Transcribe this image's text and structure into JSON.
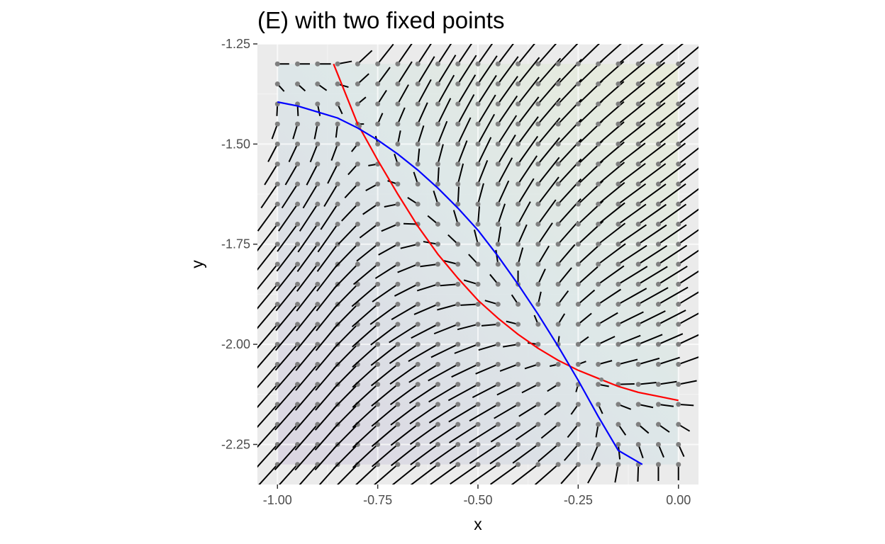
{
  "chart_data": {
    "type": "scatter",
    "title": "(E) with two fixed points",
    "xlabel": "x",
    "ylabel": "y",
    "xlim": [
      -1.05,
      0.05
    ],
    "ylim": [
      -2.35,
      -1.25
    ],
    "x_ticks": [
      -1.0,
      -0.75,
      -0.5,
      -0.25,
      0.0
    ],
    "x_tick_labels": [
      "-1.00",
      "-0.75",
      "-0.50",
      "-0.25",
      "0.00"
    ],
    "y_ticks": [
      -1.25,
      -1.5,
      -1.75,
      -2.0,
      -2.25
    ],
    "y_tick_labels": [
      "-1.25",
      "-1.50",
      "-1.75",
      "-2.00",
      "-2.25"
    ],
    "grid": true,
    "legend": "none",
    "background_region": {
      "x": [
        -1.0,
        0.0
      ],
      "y": [
        -2.3,
        -1.3
      ]
    },
    "series": [
      {
        "values": [
          {
            "x": -0.86,
            "y": -1.3
          },
          {
            "x": -0.8,
            "y": -1.45
          },
          {
            "x": -0.75,
            "y": -1.54
          },
          {
            "x": -0.7,
            "y": -1.625
          },
          {
            "x": -0.65,
            "y": -1.705
          },
          {
            "x": -0.6,
            "y": -1.775
          },
          {
            "x": -0.55,
            "y": -1.835
          },
          {
            "x": -0.5,
            "y": -1.89
          },
          {
            "x": -0.45,
            "y": -1.935
          },
          {
            "x": -0.4,
            "y": -1.975
          },
          {
            "x": -0.35,
            "y": -2.01
          },
          {
            "x": -0.3,
            "y": -2.04
          },
          {
            "x": -0.25,
            "y": -2.065
          },
          {
            "x": -0.2,
            "y": -2.085
          },
          {
            "x": -0.15,
            "y": -2.105
          },
          {
            "x": -0.1,
            "y": -2.12
          },
          {
            "x": -0.05,
            "y": -2.13
          },
          {
            "x": 0.0,
            "y": -2.14
          }
        ]
      },
      {
        "values": [
          {
            "x": -1.0,
            "y": -1.395
          },
          {
            "x": -0.95,
            "y": -1.405
          },
          {
            "x": -0.9,
            "y": -1.42
          },
          {
            "x": -0.85,
            "y": -1.435
          },
          {
            "x": -0.8,
            "y": -1.46
          },
          {
            "x": -0.75,
            "y": -1.49
          },
          {
            "x": -0.7,
            "y": -1.525
          },
          {
            "x": -0.65,
            "y": -1.565
          },
          {
            "x": -0.6,
            "y": -1.61
          },
          {
            "x": -0.55,
            "y": -1.66
          },
          {
            "x": -0.5,
            "y": -1.715
          },
          {
            "x": -0.45,
            "y": -1.78
          },
          {
            "x": -0.4,
            "y": -1.85
          },
          {
            "x": -0.35,
            "y": -1.925
          },
          {
            "x": -0.3,
            "y": -2.005
          },
          {
            "x": -0.25,
            "y": -2.09
          },
          {
            "x": -0.2,
            "y": -2.18
          },
          {
            "x": -0.15,
            "y": -2.265
          },
          {
            "x": -0.09,
            "y": -2.3
          }
        ]
      }
    ],
    "points": [
      {
        "x": -0.795,
        "y": -1.455
      },
      {
        "x": -0.192,
        "y": -2.088
      }
    ],
    "vector_field": {
      "x_range": [
        -1.0,
        0.0
      ],
      "y_range": [
        -2.3,
        -1.3
      ],
      "step": 0.05
    }
  },
  "colors": {
    "panel_background": "#ebebeb",
    "grid_major": "#ffffff",
    "grid_minor": "#f4f4f4",
    "series_1": "#ff0000",
    "series_2": "#0000ff",
    "vector": "#000000",
    "vector_origin": "#7f7f7f",
    "region_low": "#d8d2e0",
    "region_mid": "#dbe7e8",
    "region_high": "#e8ebd7"
  }
}
